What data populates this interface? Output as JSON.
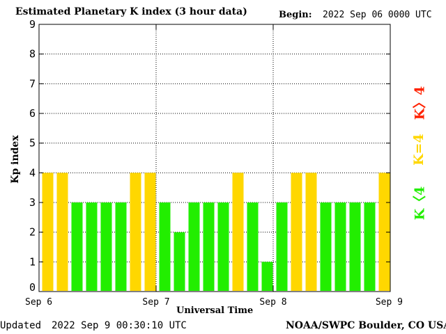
{
  "header": {
    "title": "Estimated Planetary K index (3 hour data)",
    "begin_label": "Begin:",
    "begin_value": "2022 Sep 06 0000 UTC"
  },
  "footer": {
    "updated_label": "Updated",
    "updated_value": "2022 Sep  9 00:30:10 UTC",
    "source": "NOAA/SWPC Boulder, CO USA"
  },
  "legend": {
    "high": {
      "label": "K>4",
      "color": "#ff2200"
    },
    "equal": {
      "label": "K=4",
      "color": "#ffd700"
    },
    "low": {
      "label": "K<4",
      "color": "#22ee00"
    }
  },
  "chart_data": {
    "type": "bar",
    "title": "Estimated Planetary K index (3 hour data)",
    "xlabel": "Universal Time",
    "ylabel": "Kp index",
    "ylim": [
      0,
      9
    ],
    "yticks": [
      "0",
      "1",
      "2",
      "3",
      "4",
      "5",
      "6",
      "7",
      "8",
      "9"
    ],
    "xticks": [
      "Sep 6",
      "Sep 7",
      "Sep 8",
      "Sep 9"
    ],
    "grid": true,
    "values": [
      4,
      4,
      3,
      3,
      3,
      3,
      4,
      4,
      3,
      2,
      3,
      3,
      3,
      4,
      3,
      1,
      3,
      4,
      4,
      3,
      3,
      3,
      3,
      4
    ],
    "colors": {
      "below4": "#22ee00",
      "equal4": "#ffd700",
      "above4": "#ff2200"
    }
  }
}
